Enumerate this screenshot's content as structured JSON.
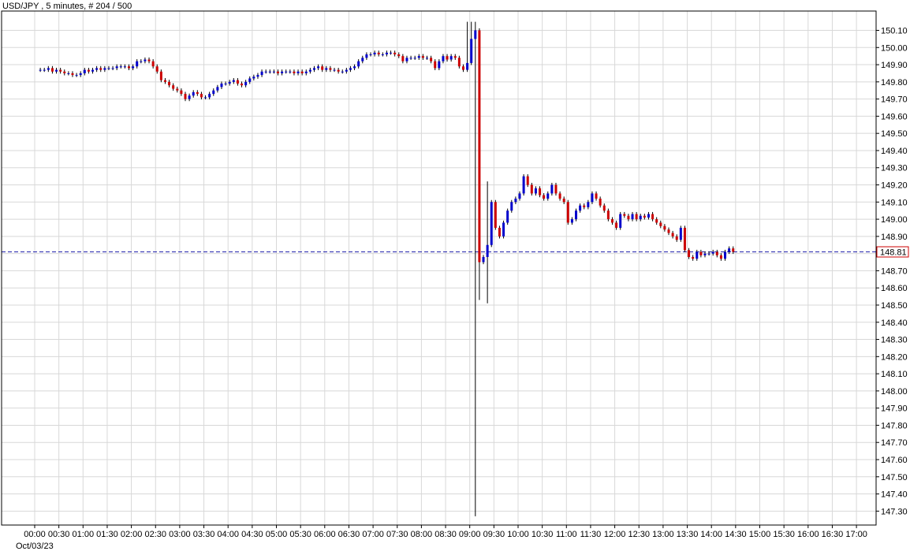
{
  "chart_data": {
    "type": "candlestick",
    "title": "USD/JPY , 5 minutes, # 204 / 500",
    "date_label": "Oct/03/23",
    "ylim": [
      147.25,
      150.2
    ],
    "y_ticks": [
      "150.10",
      "150.00",
      "149.90",
      "149.80",
      "149.70",
      "149.60",
      "149.50",
      "149.40",
      "149.30",
      "149.20",
      "149.10",
      "149.00",
      "148.90",
      "148.80",
      "148.70",
      "148.60",
      "148.50",
      "148.40",
      "148.30",
      "148.20",
      "148.10",
      "148.00",
      "147.90",
      "147.80",
      "147.70",
      "147.60",
      "147.50",
      "147.40",
      "147.30"
    ],
    "x_ticks": [
      "00:00",
      "00:30",
      "01:00",
      "01:30",
      "02:00",
      "02:30",
      "03:00",
      "03:30",
      "04:00",
      "04:30",
      "05:00",
      "05:30",
      "06:00",
      "06:30",
      "07:00",
      "07:30",
      "08:00",
      "08:30",
      "09:00",
      "09:30",
      "10:00",
      "10:30",
      "11:00",
      "11:30",
      "12:00",
      "12:30",
      "13:00",
      "13:30",
      "14:00",
      "14:30",
      "15:00",
      "15:30",
      "16:00",
      "16:30",
      "17:00"
    ],
    "current_price": "148.81",
    "current_value": 148.81,
    "colors": {
      "up": "#0000cc",
      "down": "#cc0000",
      "grid": "#d8d8d8",
      "price_line": "#1f1faa",
      "price_label": "#cc0000"
    },
    "closes": [
      149.87,
      149.87,
      149.87,
      149.88,
      149.86,
      149.87,
      149.86,
      149.85,
      149.85,
      149.84,
      149.84,
      149.85,
      149.87,
      149.86,
      149.87,
      149.88,
      149.87,
      149.88,
      149.88,
      149.88,
      149.89,
      149.89,
      149.89,
      149.88,
      149.89,
      149.92,
      149.92,
      149.93,
      149.92,
      149.89,
      149.86,
      149.81,
      149.8,
      149.78,
      149.76,
      149.75,
      149.73,
      149.7,
      149.72,
      149.74,
      149.73,
      149.71,
      149.71,
      149.73,
      149.75,
      149.77,
      149.79,
      149.79,
      149.8,
      149.81,
      149.79,
      149.78,
      149.8,
      149.82,
      149.83,
      149.84,
      149.86,
      149.86,
      149.86,
      149.86,
      149.85,
      149.86,
      149.86,
      149.86,
      149.85,
      149.86,
      149.85,
      149.86,
      149.87,
      149.88,
      149.89,
      149.87,
      149.88,
      149.87,
      149.87,
      149.86,
      149.86,
      149.87,
      149.88,
      149.89,
      149.92,
      149.94,
      149.96,
      149.96,
      149.97,
      149.96,
      149.96,
      149.97,
      149.97,
      149.96,
      149.95,
      149.92,
      149.94,
      149.94,
      149.94,
      149.95,
      149.94,
      149.94,
      149.92,
      149.88,
      149.92,
      149.95,
      149.93,
      149.95,
      149.94,
      149.89,
      149.87,
      149.91,
      150.05,
      150.1,
      148.75,
      148.78,
      148.85,
      149.1,
      148.95,
      148.9,
      148.98,
      149.05,
      149.1,
      149.12,
      149.15,
      149.25,
      149.2,
      149.15,
      149.18,
      149.14,
      149.12,
      149.15,
      149.2,
      149.15,
      149.12,
      149.1,
      148.98,
      149.0,
      149.05,
      149.08,
      149.07,
      149.1,
      149.15,
      149.12,
      149.08,
      149.05,
      149.0,
      148.98,
      148.95,
      149.03,
      149.02,
      149.0,
      149.03,
      149.0,
      149.02,
      149.01,
      149.03,
      149.0,
      148.98,
      148.96,
      148.94,
      148.92,
      148.9,
      148.88,
      148.95,
      148.82,
      148.78,
      148.77,
      148.81,
      148.79,
      148.8,
      148.8,
      148.81,
      148.79,
      148.77,
      148.81,
      148.83,
      148.81
    ],
    "special": {
      "wick_low": 147.27,
      "wick_high": 150.15,
      "spike_index": 109
    }
  }
}
